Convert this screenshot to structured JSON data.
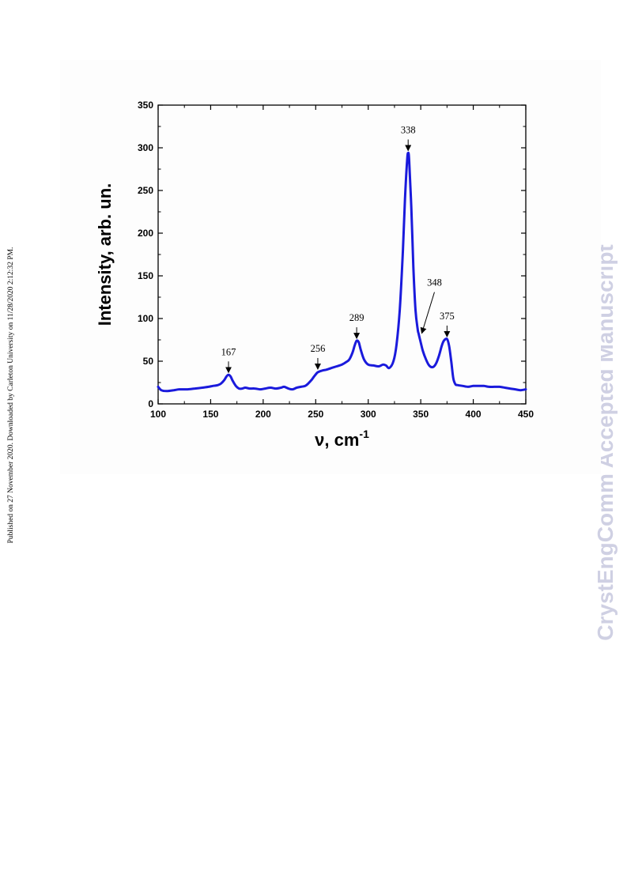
{
  "page": {
    "side_note": "Published on 27 November 2020. Downloaded by Carleton University on 11/28/2020 2:12:32 PM.",
    "watermark": "CrystEngComm Accepted Manuscript"
  },
  "colors": {
    "series": "#1a1adc",
    "axis": "#000000",
    "watermark": "#cfd0e3"
  },
  "chart_data": {
    "type": "line",
    "title": "",
    "xlabel": "ν, cm",
    "xlabel_superscript": "-1",
    "ylabel": "Intensity, arb. un.",
    "xlim": [
      100,
      450
    ],
    "ylim": [
      0,
      350
    ],
    "xticks": [
      "100",
      "150",
      "200",
      "250",
      "300",
      "350",
      "400",
      "450"
    ],
    "yticks": [
      "0",
      "50",
      "100",
      "150",
      "200",
      "250",
      "300",
      "350"
    ],
    "grid": false,
    "series": [
      {
        "x": [
          100,
          103,
          108,
          115,
          120,
          128,
          135,
          142,
          148,
          152,
          157,
          160,
          163,
          165,
          167,
          169,
          171,
          174,
          177,
          180,
          183,
          187,
          192,
          197,
          202,
          207,
          212,
          217,
          220,
          224,
          228,
          232,
          236,
          240,
          243,
          246,
          249,
          252,
          256,
          260,
          265,
          270,
          275,
          279,
          282,
          285,
          287,
          289,
          291,
          293,
          296,
          300,
          305,
          310,
          314,
          317,
          320,
          324,
          327,
          330,
          333,
          335,
          337,
          338,
          339,
          341,
          343,
          345,
          347,
          348,
          350,
          352,
          355,
          358,
          361,
          364,
          367,
          370,
          372,
          375,
          377,
          379,
          381,
          383,
          385,
          390,
          395,
          400,
          405,
          410,
          415,
          420,
          425,
          430,
          435,
          440,
          445,
          450
        ],
        "y": [
          20,
          16,
          15,
          16,
          17,
          17,
          18,
          19,
          20,
          21,
          22,
          24,
          28,
          32,
          34,
          32,
          27,
          21,
          18,
          18,
          19,
          18,
          18,
          17,
          18,
          19,
          18,
          19,
          20,
          18,
          17,
          19,
          20,
          21,
          24,
          28,
          33,
          37,
          39,
          40,
          42,
          44,
          46,
          49,
          52,
          60,
          68,
          74,
          72,
          63,
          52,
          46,
          45,
          44,
          46,
          45,
          42,
          50,
          70,
          110,
          180,
          240,
          285,
          294,
          285,
          230,
          160,
          110,
          88,
          82,
          72,
          62,
          52,
          45,
          43,
          46,
          55,
          68,
          74,
          76,
          68,
          50,
          30,
          23,
          22,
          21,
          20,
          21,
          21,
          21,
          20,
          20,
          20,
          19,
          18,
          17,
          16,
          17
        ]
      }
    ],
    "annotations": [
      {
        "text": "167",
        "x": 167,
        "y": 34
      },
      {
        "text": "256",
        "x": 252,
        "y": 38
      },
      {
        "text": "289",
        "x": 289,
        "y": 74
      },
      {
        "text": "338",
        "x": 338,
        "y": 294
      },
      {
        "text": "348",
        "x": 351,
        "y": 80
      },
      {
        "text": "375",
        "x": 375,
        "y": 76
      }
    ]
  }
}
